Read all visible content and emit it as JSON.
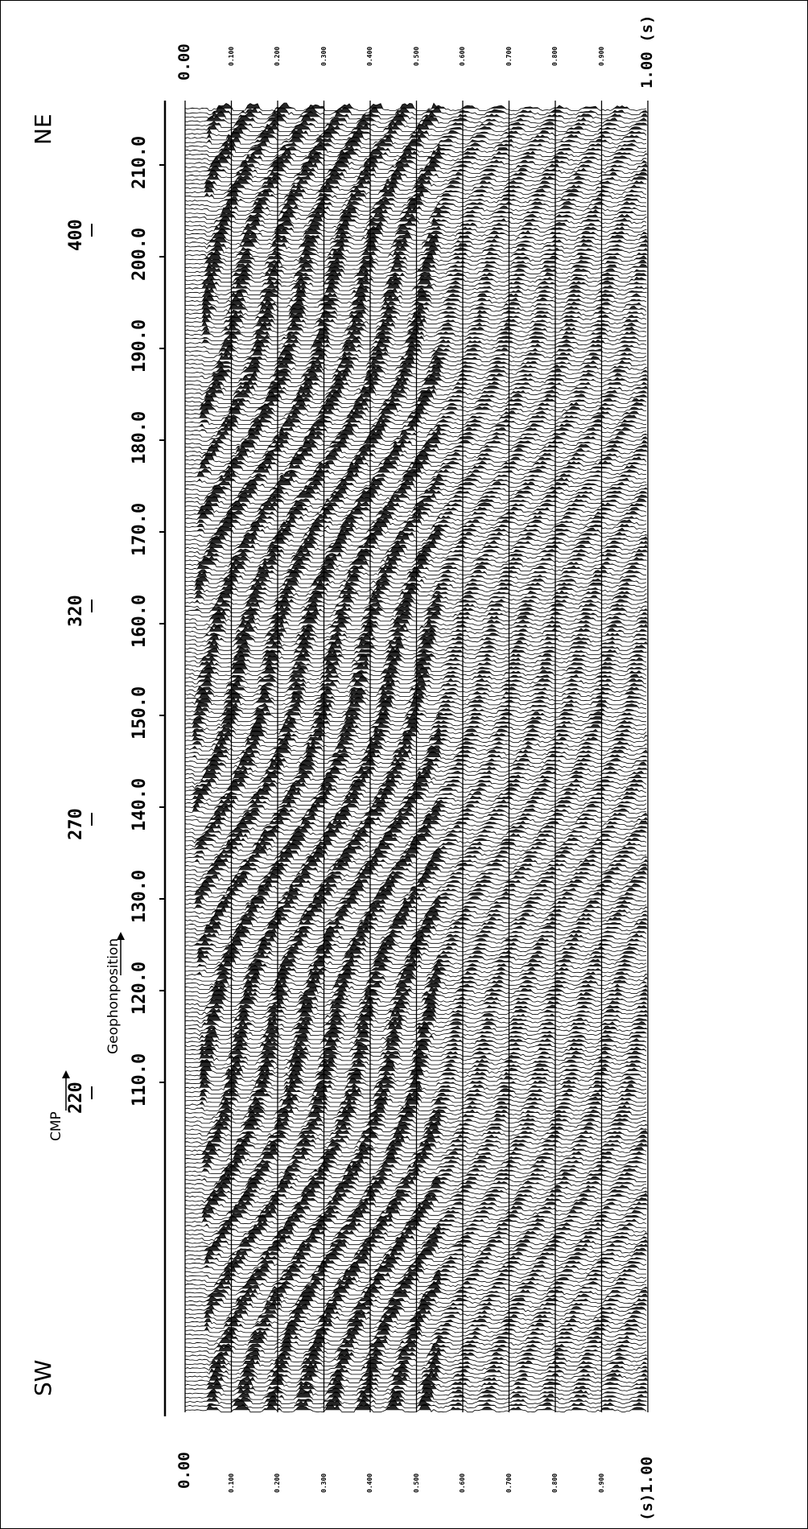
{
  "directions": {
    "left": "SW",
    "right": "NE"
  },
  "geophone_axis": {
    "title": "Geophonposition",
    "labels": [
      "110.0",
      "120.0",
      "130.0",
      "140.0",
      "150.0",
      "160.0",
      "170.0",
      "180.0",
      "190.0",
      "200.0",
      "210.0"
    ]
  },
  "cmp_axis": {
    "title": "CMP",
    "labels": [
      "220",
      "270",
      "320",
      "400"
    ]
  },
  "time_axis_top": {
    "labels": [
      "0.00",
      "0.100",
      "0.200",
      "0.300",
      "0.400",
      "0.500",
      "0.600",
      "0.700",
      "0.800",
      "0.900",
      "1.00 (s)"
    ]
  },
  "time_axis_bottom": {
    "labels": [
      "0.00",
      "0.100",
      "0.200",
      "0.300",
      "0.400",
      "0.500",
      "0.600",
      "0.700",
      "0.800",
      "0.900",
      "(s)1.00"
    ]
  },
  "colors": {
    "ink": "#000000",
    "paper": "#ffffff"
  }
}
